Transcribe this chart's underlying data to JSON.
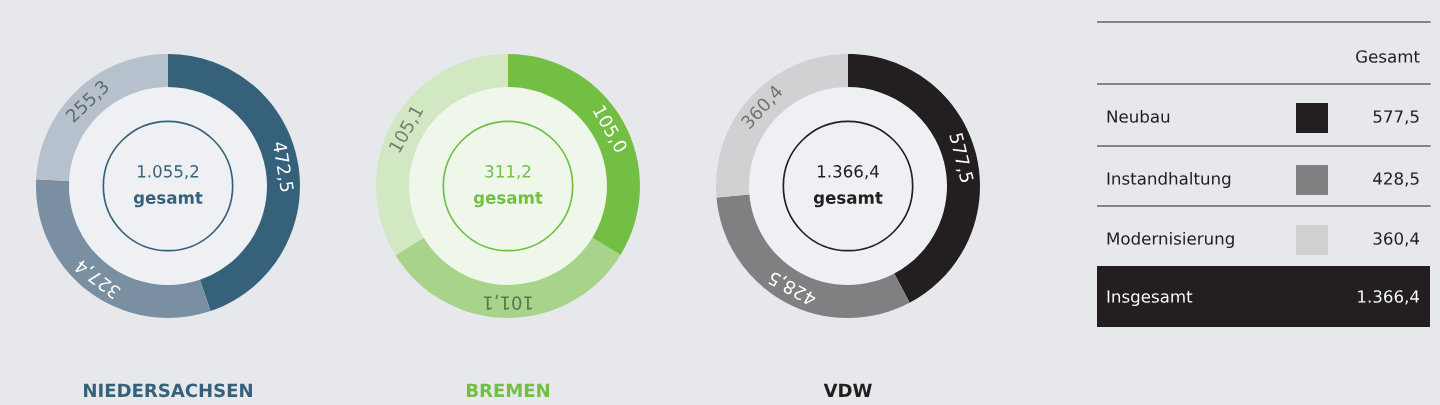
{
  "chart_data": [
    {
      "type": "donut",
      "title": "NIEDERSACHSEN",
      "categories": [
        null,
        null,
        null
      ],
      "values": [
        472.5,
        327.4,
        255.3
      ],
      "value_labels": [
        "472,5",
        "327,4",
        "255,3"
      ],
      "colors": [
        "#35627a",
        "#7b8fa3",
        "#b6c1cd"
      ],
      "annotations": [
        "1.055,2",
        "gesamt"
      ]
    },
    {
      "type": "donut",
      "title": "BREMEN",
      "categories": [
        null,
        null,
        null
      ],
      "values": [
        105.0,
        101.1,
        105.1
      ],
      "value_labels": [
        "105,0",
        "101,1",
        "105,1"
      ],
      "colors": [
        "#72bf44",
        "#a8d38a",
        "#d2e8c3"
      ],
      "annotations": [
        "311,2",
        "gesamt"
      ]
    },
    {
      "type": "donut",
      "title": "VDW",
      "categories": [
        null,
        null,
        null
      ],
      "values": [
        577.5,
        428.5,
        360.4
      ],
      "value_labels": [
        "577,5",
        "428,5",
        "360,4"
      ],
      "colors": [
        "#231f20",
        "#808082",
        "#d1d1d3"
      ],
      "annotations": [
        "1.366,4",
        "gesamt"
      ]
    },
    {
      "type": "other",
      "title": "Gesamt",
      "categories": [
        "Neubau",
        "Instandhaltung",
        "Modernisierung"
      ],
      "value_labels": [
        "577,5",
        "428,5",
        "360,4"
      ],
      "colors": [
        "#231f20",
        "#808082",
        "#d1d1d3"
      ],
      "annotations": [
        "Insgesamt",
        "1.366,4"
      ]
    }
  ]
}
